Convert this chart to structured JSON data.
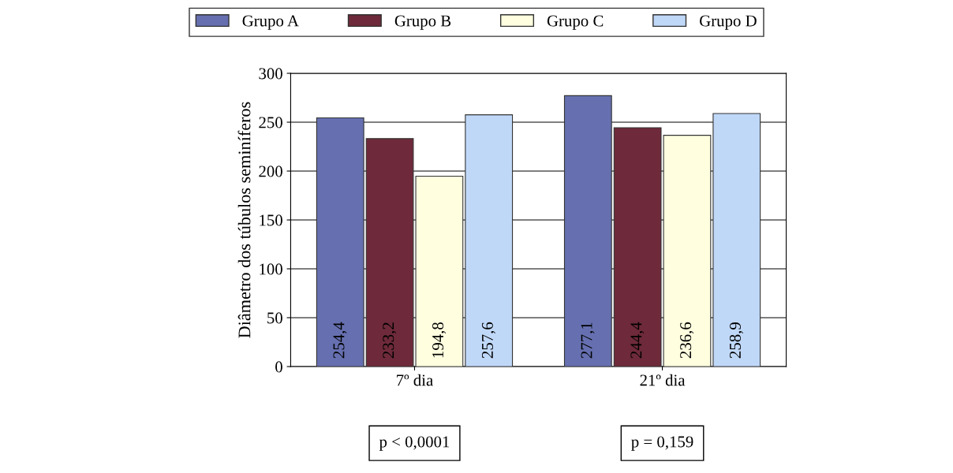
{
  "chart_data": {
    "type": "bar",
    "ylabel": "Diâmetro dos túbulos seminíferos",
    "categories": [
      "7º dia",
      "21º dia"
    ],
    "series": [
      {
        "name": "Grupo A",
        "color": "#6670b0",
        "values": [
          254.4,
          277.1
        ],
        "value_labels": [
          "254,4",
          "277,1"
        ]
      },
      {
        "name": "Grupo B",
        "color": "#6e2a3a",
        "values": [
          233.2,
          244.4
        ],
        "value_labels": [
          "233,2",
          "244,4"
        ]
      },
      {
        "name": "Grupo C",
        "color": "#ffffe0",
        "values": [
          194.8,
          236.6
        ],
        "value_labels": [
          "194,8",
          "236,6"
        ]
      },
      {
        "name": "Grupo D",
        "color": "#c0d8f8",
        "values": [
          257.6,
          258.9
        ],
        "value_labels": [
          "257,6",
          "258,9"
        ]
      }
    ],
    "ylim": [
      0,
      300
    ],
    "yticks": [
      0,
      50,
      100,
      150,
      200,
      250,
      300
    ],
    "grid": "y",
    "legend": "top",
    "annotations": [
      "p < 0,0001",
      "p = 0,159"
    ]
  }
}
